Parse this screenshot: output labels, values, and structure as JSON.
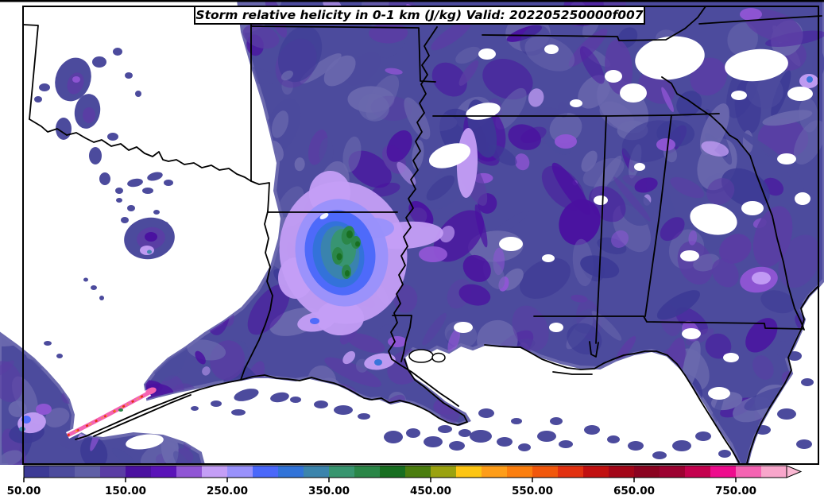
{
  "title": "Storm relative helicity in 0-1 km (J/kg) Valid: 202205250000f007",
  "chart_data": {
    "type": "heatmap",
    "subtype": "filled-contour-weather-map",
    "title": "Storm relative helicity in 0-1 km (J/kg) Valid: 202205250000f007",
    "variable": "Storm relative helicity in 0-1 km",
    "units": "J/kg",
    "valid_label": "Valid: 202205250000f007",
    "colorbar": {
      "orientation": "horizontal",
      "value_min": 50,
      "segment_step": 25,
      "tick_values": [
        50,
        150,
        250,
        350,
        450,
        550,
        650,
        750
      ],
      "tick_labels": [
        "50.00",
        "150.00",
        "250.00",
        "350.00",
        "450.00",
        "550.00",
        "650.00",
        "750.00"
      ],
      "segment_colors": [
        "#3c3a95",
        "#4c4b9d",
        "#5f5fa6",
        "#5a3da4",
        "#4a10a0",
        "#5a13b8",
        "#9055d5",
        "#c49ef6",
        "#9991fb",
        "#4a68fa",
        "#3173d8",
        "#3b84ac",
        "#38956f",
        "#2a8647",
        "#176e20",
        "#4a7d0e",
        "#9aa20f",
        "#fdc513",
        "#fe9d19",
        "#fb7e0e",
        "#f1570b",
        "#e23110",
        "#c11010",
        "#a30618",
        "#8b0320",
        "#9c0231",
        "#c4014e",
        "#ee0c8d",
        "#f463b2",
        "#f8a6cb"
      ],
      "arrow_color": "#fab8d3",
      "outline_color": "#000000",
      "label_color": "#000000"
    },
    "map_palette": {
      "background_below_min": "#ffffff",
      "base_fill": "#4c4b9d",
      "mottle_colors": [
        "#6b69ae",
        "#5a3da4",
        "#4a10a0",
        "#4c4b9d",
        "#3c3a95"
      ],
      "high_value_core_colors": [
        "#c49ef6",
        "#9991fb",
        "#4a68fa",
        "#3173d8",
        "#3b84ac",
        "#38956f",
        "#2a8647",
        "#176e20"
      ],
      "coastal_ribbon_colors": [
        "#f463b2",
        "#e23110",
        "#fe9d19",
        "#2a8647"
      ],
      "state_border_color": "#000000"
    }
  }
}
